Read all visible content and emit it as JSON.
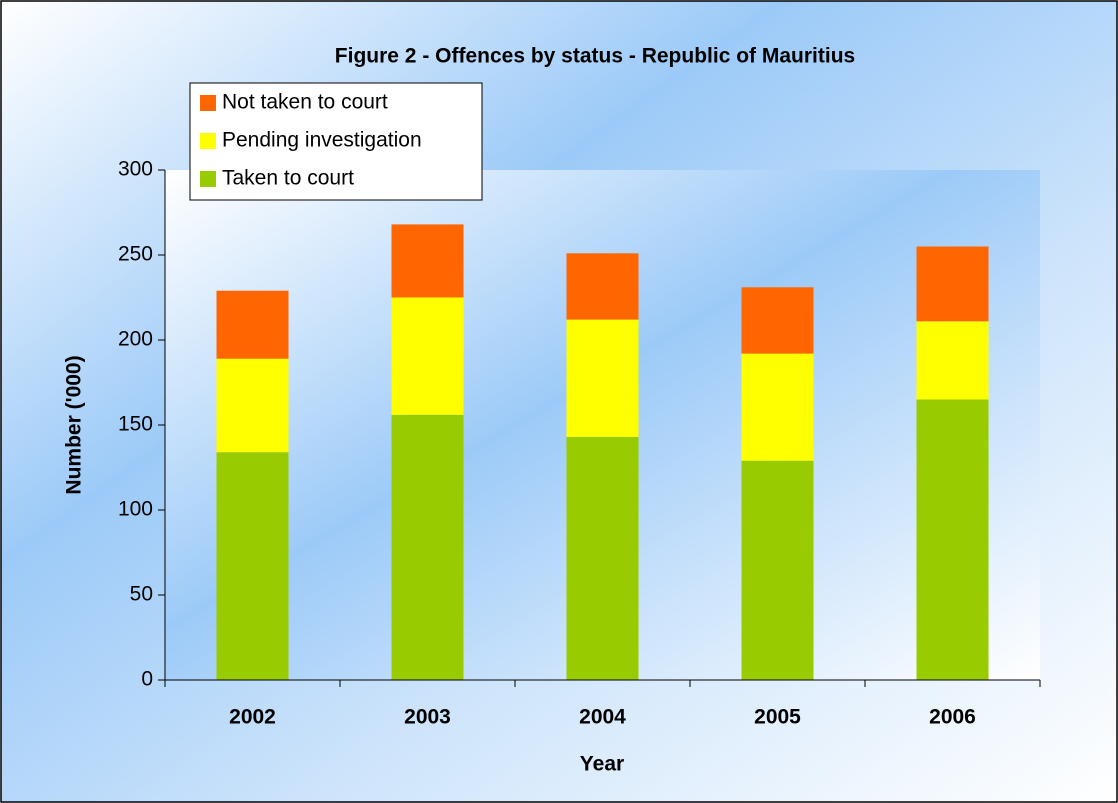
{
  "chart_data": {
    "type": "stacked_bar",
    "title": "Figure 2 - Offences by status - Republic of Mauritius",
    "x_label": "Year",
    "y_label": "Number ('000)",
    "categories": [
      "2002",
      "2003",
      "2004",
      "2005",
      "2006"
    ],
    "series": [
      {
        "name": "Taken to court",
        "color": "#99cc00",
        "values": [
          134,
          156,
          143,
          129,
          165
        ]
      },
      {
        "name": "Pending investigation",
        "color": "#ffff00",
        "values": [
          55,
          69,
          69,
          63,
          46
        ]
      },
      {
        "name": "Not taken to court",
        "color": "#ff6600",
        "values": [
          40,
          43,
          39,
          39,
          44
        ]
      }
    ],
    "ylim": [
      0,
      300
    ],
    "yticks": [
      0,
      50,
      100,
      150,
      200,
      250,
      300
    ]
  }
}
